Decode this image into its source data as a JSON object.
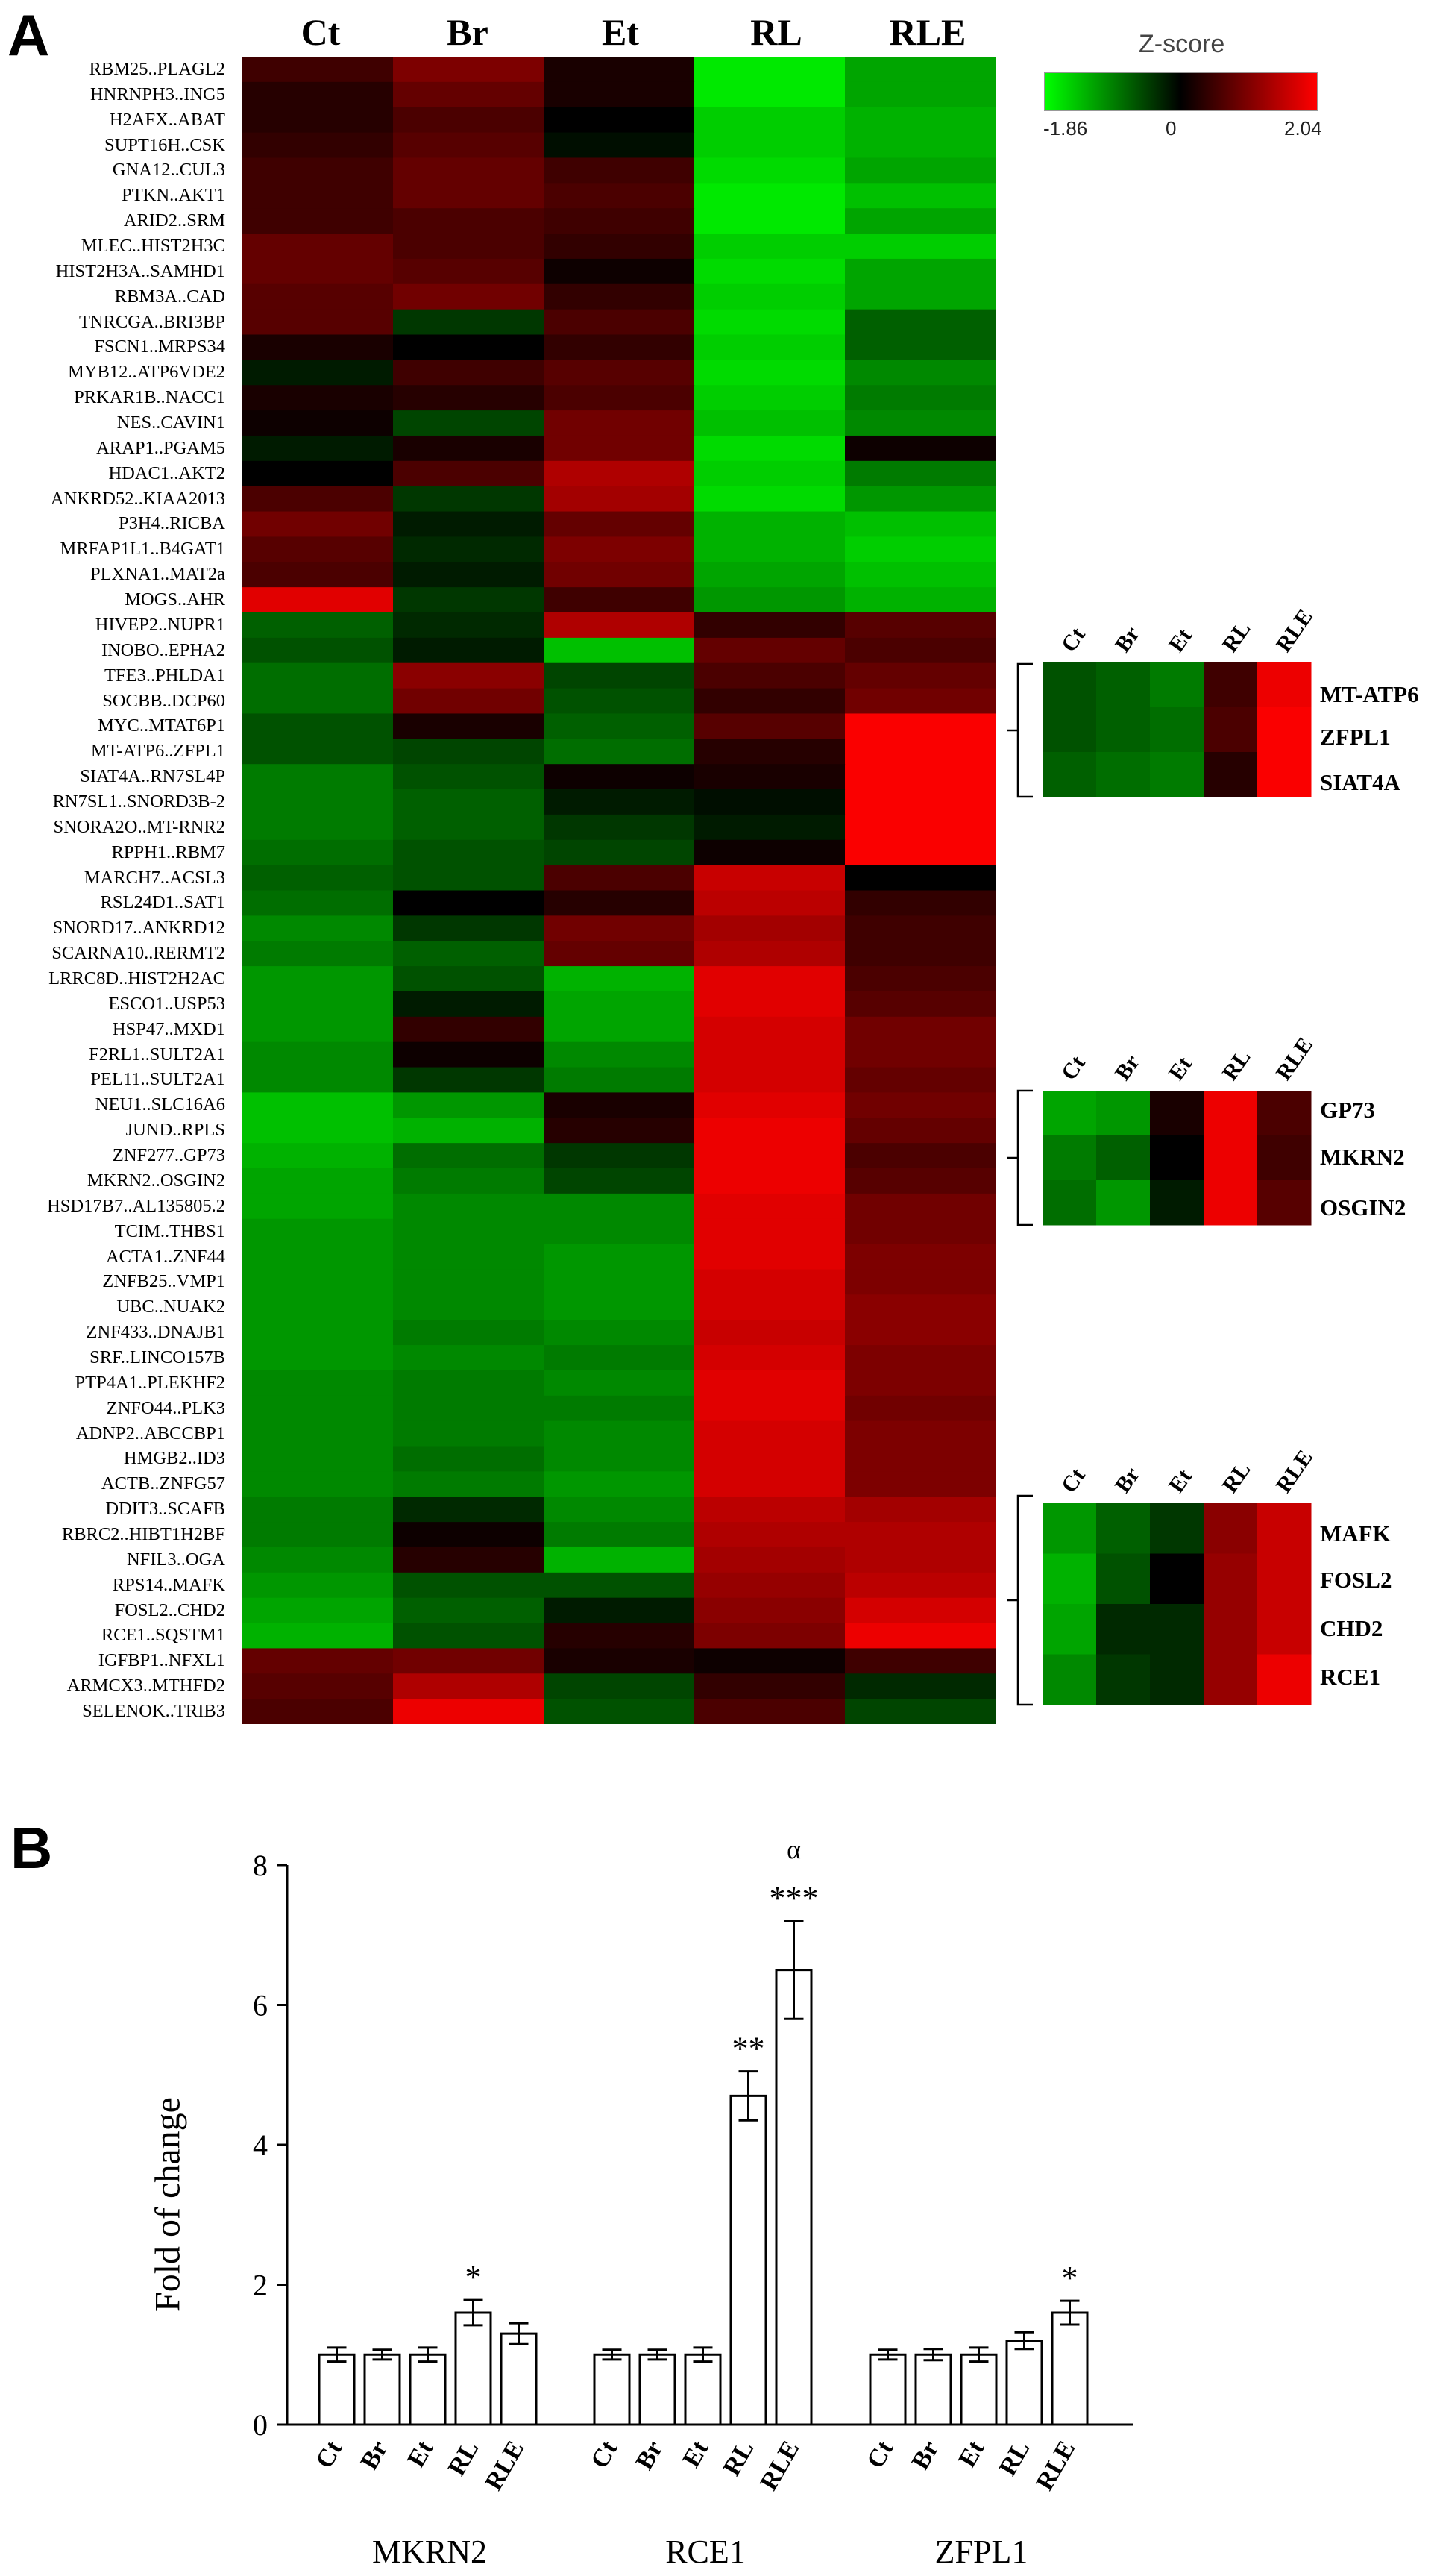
{
  "panel_labels": {
    "a": "A",
    "b": "B"
  },
  "colorbar": {
    "title": "Z-score",
    "min_label": "-1.86",
    "mid_label": "0",
    "max_label": "2.04",
    "min": -1.86,
    "max": 2.04,
    "low_color": "#00ff00",
    "mid_color": "#000000",
    "high_color": "#ff0000"
  },
  "chart_data": [
    {
      "type": "heatmap",
      "columns": [
        "Ct",
        "Br",
        "Et",
        "RL",
        "RLE"
      ],
      "rows": [
        "RBM25..PLAGL2",
        "HNRNPH3..ING5",
        "H2AFX..ABAT",
        "SUPT16H..CSK",
        "GNA12..CUL3",
        "PTKN..AKT1",
        "ARID2..SRM",
        "MLEC..HIST2H3C",
        "HIST2H3A..SAMHD1",
        "RBM3A..CAD",
        "TNRCGA..BRI3BP",
        "FSCN1..MRPS34",
        "MYB12..ATP6VDE2",
        "PRKAR1B..NACC1",
        "NES..CAVIN1",
        "ARAP1..PGAM5",
        "HDAC1..AKT2",
        "ANKRD52..KIAA2013",
        "P3H4..RICBA",
        "MRFAP1L1..B4GAT1",
        "PLXNA1..MAT2a",
        "MOGS..AHR",
        "HIVEP2..NUPR1",
        "INOBO..EPHA2",
        "TFE3..PHLDA1",
        "SOCBB..DCP60",
        "MYC..MTAT6P1",
        "MT-ATP6..ZFPL1",
        "SIAT4A..RN7SL4P",
        "RN7SL1..SNORD3B-2",
        "SNORA2O..MT-RNR2",
        "RPPH1..RBM7",
        "MARCH7..ACSL3",
        "RSL24D1..SAT1",
        "SNORD17..ANKRD12",
        "SCARNA10..RERMT2",
        "LRRC8D..HIST2H2AC",
        "ESCO1..USP53",
        "HSP47..MXD1",
        "F2RL1..SULT2A1",
        "PEL11..SULT2A1",
        "NEU1..SLC16A6",
        "JUND..RPLS",
        "ZNF277..GP73",
        "MKRN2..OSGIN2",
        "HSD17B7..AL135805.2",
        "TCIM..THBS1",
        "ACTA1..ZNF44",
        "ZNFB25..VMP1",
        "UBC..NUAK2",
        "ZNF433..DNAJB1",
        "SRF..LINCO157B",
        "PTP4A1..PLEKHF2",
        "ZNFO44..PLK3",
        "ADNP2..ABCCBP1",
        "HMGB2..ID3",
        "ACTB..ZNFG57",
        "DDIT3..SCAFB",
        "RBRC2..HIBT1H2BF",
        "NFIL3..OGA",
        "RPS14..MAFK",
        "FOSL2..CHD2",
        "RCE1..SQSTM1",
        "IGFBP1..NFXL1",
        "ARMCX3..MTHFD2",
        "SELENOK..TRIB3"
      ],
      "values": [
        [
          0.5,
          1.0,
          0.2,
          -1.7,
          -1.2
        ],
        [
          0.3,
          0.8,
          0.2,
          -1.7,
          -1.2
        ],
        [
          0.3,
          0.6,
          0.0,
          -1.5,
          -1.3
        ],
        [
          0.4,
          0.7,
          -0.1,
          -1.5,
          -1.3
        ],
        [
          0.5,
          0.8,
          0.5,
          -1.6,
          -1.2
        ],
        [
          0.5,
          0.8,
          0.6,
          -1.7,
          -1.4
        ],
        [
          0.5,
          0.6,
          0.5,
          -1.7,
          -1.2
        ],
        [
          0.8,
          0.6,
          0.4,
          -1.5,
          -1.5
        ],
        [
          0.8,
          0.7,
          0.1,
          -1.6,
          -1.2
        ],
        [
          0.7,
          0.9,
          0.4,
          -1.5,
          -1.2
        ],
        [
          0.7,
          -0.4,
          0.6,
          -1.6,
          -0.7
        ],
        [
          0.2,
          0.0,
          0.4,
          -1.5,
          -0.7
        ],
        [
          -0.2,
          0.5,
          0.7,
          -1.6,
          -1.0
        ],
        [
          0.2,
          0.3,
          0.6,
          -1.5,
          -0.9
        ],
        [
          0.1,
          -0.5,
          0.9,
          -1.4,
          -1.0
        ],
        [
          -0.2,
          0.2,
          0.9,
          -1.6,
          0.1
        ],
        [
          0.0,
          0.6,
          1.4,
          -1.5,
          -0.9
        ],
        [
          0.6,
          -0.4,
          1.3,
          -1.6,
          -1.1
        ],
        [
          0.9,
          -0.2,
          0.8,
          -1.3,
          -1.4
        ],
        [
          0.7,
          -0.3,
          1.0,
          -1.3,
          -1.5
        ],
        [
          0.6,
          -0.2,
          0.9,
          -1.2,
          -1.4
        ],
        [
          1.8,
          -0.4,
          0.5,
          -1.1,
          -1.3
        ],
        [
          -0.7,
          -0.3,
          1.4,
          0.4,
          0.7
        ],
        [
          -0.6,
          -0.2,
          -1.4,
          0.8,
          0.6
        ],
        [
          -0.8,
          1.1,
          -0.5,
          0.6,
          0.8
        ],
        [
          -0.8,
          0.9,
          -0.6,
          0.4,
          0.9
        ],
        [
          -0.6,
          0.2,
          -0.7,
          0.7,
          2.0
        ],
        [
          -0.6,
          -0.5,
          -0.8,
          0.3,
          2.0
        ],
        [
          -0.9,
          -0.6,
          0.1,
          0.2,
          2.0
        ],
        [
          -0.9,
          -0.7,
          -0.2,
          -0.1,
          2.0
        ],
        [
          -0.9,
          -0.7,
          -0.4,
          -0.2,
          2.0
        ],
        [
          -0.8,
          -0.6,
          -0.5,
          0.1,
          2.0
        ],
        [
          -0.7,
          -0.6,
          0.6,
          1.6,
          0.0
        ],
        [
          -0.8,
          0.0,
          0.3,
          1.5,
          0.4
        ],
        [
          -1.0,
          -0.4,
          0.9,
          1.3,
          0.5
        ],
        [
          -0.9,
          -0.7,
          0.8,
          1.4,
          0.5
        ],
        [
          -1.1,
          -0.6,
          -1.3,
          1.8,
          0.6
        ],
        [
          -1.1,
          -0.2,
          -1.2,
          1.8,
          0.7
        ],
        [
          -1.1,
          0.4,
          -1.2,
          1.7,
          0.9
        ],
        [
          -1.0,
          0.1,
          -1.0,
          1.7,
          0.9
        ],
        [
          -1.0,
          -0.4,
          -0.9,
          1.7,
          0.8
        ],
        [
          -1.4,
          -1.1,
          0.2,
          1.8,
          0.9
        ],
        [
          -1.4,
          -1.3,
          0.3,
          1.9,
          0.8
        ],
        [
          -1.3,
          -0.8,
          -0.4,
          1.9,
          0.6
        ],
        [
          -1.2,
          -0.9,
          -0.5,
          1.9,
          0.7
        ],
        [
          -1.2,
          -1.0,
          -1.0,
          1.8,
          0.9
        ],
        [
          -1.1,
          -1.0,
          -1.0,
          1.8,
          0.9
        ],
        [
          -1.1,
          -1.0,
          -1.1,
          1.8,
          1.0
        ],
        [
          -1.1,
          -1.0,
          -1.1,
          1.7,
          1.0
        ],
        [
          -1.1,
          -1.0,
          -1.1,
          1.7,
          1.1
        ],
        [
          -1.1,
          -0.9,
          -1.0,
          1.6,
          1.1
        ],
        [
          -1.1,
          -1.0,
          -0.9,
          1.7,
          1.0
        ],
        [
          -1.0,
          -0.9,
          -1.0,
          1.8,
          1.0
        ],
        [
          -1.0,
          -0.9,
          -0.9,
          1.8,
          0.9
        ],
        [
          -1.0,
          -0.9,
          -1.0,
          1.7,
          1.0
        ],
        [
          -1.0,
          -0.8,
          -1.0,
          1.7,
          1.0
        ],
        [
          -1.0,
          -0.9,
          -1.1,
          1.7,
          1.0
        ],
        [
          -0.9,
          -0.3,
          -1.0,
          1.5,
          1.3
        ],
        [
          -0.9,
          0.1,
          -0.9,
          1.4,
          1.4
        ],
        [
          -1.0,
          0.3,
          -1.3,
          1.3,
          1.4
        ],
        [
          -1.1,
          -0.6,
          -0.6,
          1.2,
          1.5
        ],
        [
          -1.2,
          -0.7,
          -0.2,
          1.1,
          1.7
        ],
        [
          -1.3,
          -0.6,
          0.3,
          1.0,
          1.9
        ],
        [
          0.8,
          0.9,
          0.2,
          0.1,
          0.5
        ],
        [
          0.7,
          1.4,
          -0.5,
          0.4,
          -0.3
        ],
        [
          0.6,
          1.9,
          -0.6,
          0.6,
          -0.5
        ]
      ]
    },
    {
      "type": "heatmap",
      "columns": [
        "Ct",
        "Br",
        "Et",
        "RL",
        "RLE"
      ],
      "rows": [
        "MT-ATP6",
        "ZFPL1",
        "SIAT4A"
      ],
      "values": [
        [
          -0.6,
          -0.7,
          -0.9,
          0.5,
          1.9
        ],
        [
          -0.6,
          -0.7,
          -0.8,
          0.6,
          2.0
        ],
        [
          -0.7,
          -0.8,
          -0.9,
          0.3,
          2.0
        ]
      ]
    },
    {
      "type": "heatmap",
      "columns": [
        "Ct",
        "Br",
        "Et",
        "RL",
        "RLE"
      ],
      "rows": [
        "GP73",
        "MKRN2",
        "OSGIN2"
      ],
      "values": [
        [
          -1.2,
          -1.1,
          0.2,
          1.9,
          0.6
        ],
        [
          -0.9,
          -0.7,
          0.0,
          1.9,
          0.5
        ],
        [
          -0.8,
          -1.1,
          -0.2,
          1.9,
          0.7
        ]
      ]
    },
    {
      "type": "heatmap",
      "columns": [
        "Ct",
        "Br",
        "Et",
        "RL",
        "RLE"
      ],
      "rows": [
        "MAFK",
        "FOSL2",
        "CHD2",
        "RCE1"
      ],
      "values": [
        [
          -1.1,
          -0.7,
          -0.4,
          1.1,
          1.6
        ],
        [
          -1.3,
          -0.6,
          0.0,
          1.2,
          1.6
        ],
        [
          -1.2,
          -0.3,
          -0.3,
          1.2,
          1.6
        ],
        [
          -1.0,
          -0.4,
          -0.3,
          1.2,
          1.9
        ]
      ]
    },
    {
      "type": "bar",
      "groups": [
        "MKRN2",
        "RCE1",
        "ZFPL1"
      ],
      "categories": [
        "Ct",
        "Br",
        "Et",
        "RL",
        "RLE"
      ],
      "series": [
        {
          "group": "MKRN2",
          "values": [
            1.0,
            1.0,
            1.0,
            1.6,
            1.3
          ],
          "errors": [
            0.1,
            0.07,
            0.1,
            0.18,
            0.15
          ],
          "annotations": [
            "",
            "",
            "",
            "*",
            ""
          ]
        },
        {
          "group": "RCE1",
          "values": [
            1.0,
            1.0,
            1.0,
            4.7,
            6.5
          ],
          "errors": [
            0.07,
            0.07,
            0.1,
            0.35,
            0.7
          ],
          "annotations": [
            "",
            "",
            "",
            "**",
            "***|α"
          ]
        },
        {
          "group": "ZFPL1",
          "values": [
            1.0,
            1.0,
            1.0,
            1.2,
            1.6
          ],
          "errors": [
            0.07,
            0.08,
            0.1,
            0.12,
            0.17
          ],
          "annotations": [
            "",
            "",
            "",
            "",
            "*"
          ]
        }
      ],
      "ylabel": "Fold of change",
      "ylim": [
        0,
        8
      ],
      "yticks": [
        "0",
        "2",
        "4",
        "6",
        "8"
      ]
    }
  ]
}
